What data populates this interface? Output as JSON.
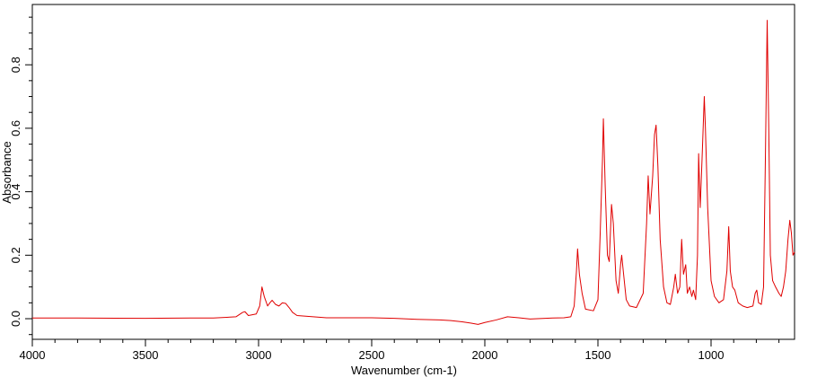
{
  "chart_data": {
    "type": "line",
    "xlabel": "Wavenumber (cm-1)",
    "ylabel": "Absorbance",
    "xlim": [
      4000,
      631
    ],
    "ylim": [
      -0.065,
      0.99
    ],
    "xticks": [
      4000,
      3500,
      3000,
      2500,
      2000,
      1500,
      1000
    ],
    "yticks": [
      {
        "value": 0,
        "label": "0.0"
      },
      0.2,
      0.4,
      0.6,
      0.8
    ],
    "xminorticks": [
      3900,
      3800,
      3700,
      3600,
      3400,
      3300,
      3200,
      3100,
      2900,
      2800,
      2700,
      2600,
      2400,
      2300,
      2200,
      2100,
      1900,
      1800,
      1700,
      1600,
      1400,
      1300,
      1200,
      1100,
      900,
      800,
      700
    ],
    "yminorticks": [
      -0.05,
      0.05,
      0.1,
      0.15,
      0.25,
      0.3,
      0.35,
      0.45,
      0.5,
      0.55,
      0.65,
      0.7,
      0.75,
      0.85,
      0.9,
      0.95
    ],
    "series": [
      {
        "color": "#e00000",
        "x": [
          4000,
          3800,
          3500,
          3300,
          3200,
          3100,
          3070,
          3060,
          3045,
          3010,
          2995,
          2985,
          2975,
          2960,
          2950,
          2940,
          2925,
          2910,
          2895,
          2880,
          2865,
          2850,
          2830,
          2700,
          2500,
          2400,
          2300,
          2200,
          2150,
          2100,
          2060,
          2030,
          2000,
          1950,
          1900,
          1850,
          1800,
          1700,
          1650,
          1620,
          1605,
          1595,
          1590,
          1582,
          1570,
          1555,
          1520,
          1500,
          1490,
          1480,
          1476,
          1468,
          1458,
          1450,
          1440,
          1432,
          1420,
          1410,
          1400,
          1395,
          1388,
          1375,
          1360,
          1330,
          1300,
          1285,
          1278,
          1270,
          1258,
          1250,
          1243,
          1235,
          1225,
          1210,
          1195,
          1180,
          1165,
          1158,
          1148,
          1138,
          1130,
          1122,
          1112,
          1105,
          1095,
          1085,
          1078,
          1068,
          1060,
          1055,
          1048,
          1040,
          1030,
          1025,
          1015,
          1000,
          985,
          965,
          945,
          930,
          922,
          915,
          905,
          895,
          880,
          860,
          840,
          815,
          805,
          798,
          790,
          778,
          768,
          760,
          752,
          745,
          738,
          728,
          715,
          700,
          690,
          680,
          670,
          660,
          652,
          645,
          638,
          631
        ],
        "values": [
          0.002,
          0.002,
          0.001,
          0.002,
          0.002,
          0.006,
          0.02,
          0.022,
          0.01,
          0.015,
          0.04,
          0.1,
          0.07,
          0.04,
          0.05,
          0.058,
          0.045,
          0.04,
          0.05,
          0.048,
          0.035,
          0.02,
          0.01,
          0.003,
          0.003,
          0.001,
          -0.002,
          -0.004,
          -0.006,
          -0.01,
          -0.014,
          -0.018,
          -0.012,
          -0.004,
          0.006,
          0.003,
          -0.001,
          0.002,
          0.003,
          0.006,
          0.04,
          0.15,
          0.22,
          0.14,
          0.08,
          0.03,
          0.025,
          0.06,
          0.27,
          0.5,
          0.63,
          0.42,
          0.2,
          0.18,
          0.36,
          0.3,
          0.12,
          0.08,
          0.17,
          0.2,
          0.15,
          0.06,
          0.04,
          0.035,
          0.08,
          0.3,
          0.45,
          0.33,
          0.45,
          0.58,
          0.61,
          0.48,
          0.25,
          0.1,
          0.05,
          0.045,
          0.1,
          0.14,
          0.08,
          0.1,
          0.25,
          0.14,
          0.17,
          0.08,
          0.1,
          0.07,
          0.09,
          0.06,
          0.2,
          0.52,
          0.35,
          0.5,
          0.7,
          0.6,
          0.35,
          0.12,
          0.07,
          0.05,
          0.06,
          0.15,
          0.29,
          0.15,
          0.1,
          0.09,
          0.05,
          0.04,
          0.035,
          0.04,
          0.08,
          0.09,
          0.05,
          0.045,
          0.1,
          0.5,
          0.94,
          0.6,
          0.2,
          0.12,
          0.1,
          0.08,
          0.07,
          0.1,
          0.15,
          0.25,
          0.31,
          0.27,
          0.2,
          0.21
        ]
      }
    ]
  }
}
